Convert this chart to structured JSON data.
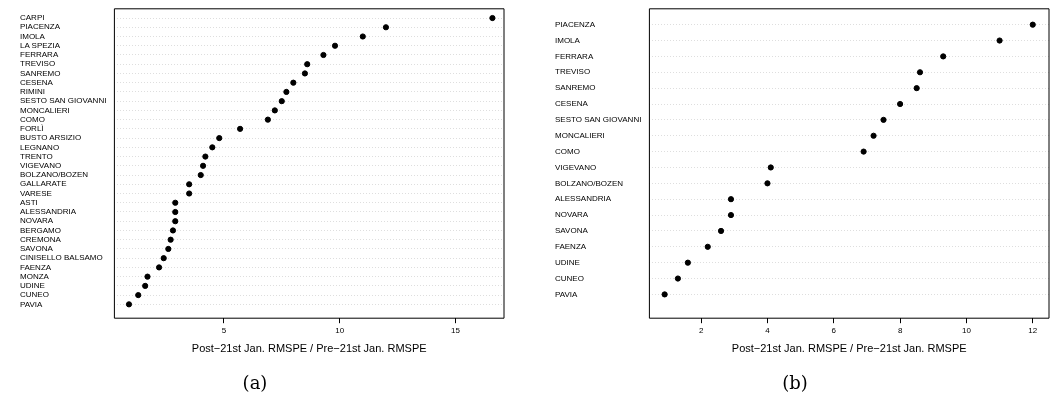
{
  "chart_data": [
    {
      "type": "scatter",
      "orientation": "horizontal",
      "color": "#000000",
      "marker": "circle",
      "grid": "y",
      "xlabel": "Post−21st Jan. RMSPE / Pre−21st Jan. RMSPE",
      "xlim": [
        0.27,
        17.1
      ],
      "xticks": [
        5,
        10,
        15
      ],
      "annotations": [
        "(a)"
      ],
      "categories": [
        "CARPI",
        "PIACENZA",
        "IMOLA",
        "LA SPEZIA",
        "FERRARA",
        "TREVISO",
        "SANREMO",
        "CESENA",
        "RIMINI",
        "SESTO SAN GIOVANNI",
        "MONCALIERI",
        "COMO",
        "FORLÌ",
        "BUSTO ARSIZIO",
        "LEGNANO",
        "TRENTO",
        "VIGEVANO",
        "BOLZANO/BOZEN",
        "GALLARATE",
        "VARESE",
        "ASTI",
        "ALESSANDRIA",
        "NOVARA",
        "BERGAMO",
        "CREMONA",
        "SAVONA",
        "CINISELLO BALSAMO",
        "FAENZA",
        "MONZA",
        "UDINE",
        "CUNEO",
        "PAVIA"
      ],
      "values": [
        16.6,
        12.0,
        11.0,
        9.8,
        9.3,
        8.6,
        8.5,
        8.0,
        7.7,
        7.5,
        7.2,
        6.9,
        5.7,
        4.8,
        4.5,
        4.2,
        4.1,
        4.0,
        3.5,
        3.5,
        2.9,
        2.9,
        2.9,
        2.8,
        2.7,
        2.6,
        2.4,
        2.2,
        1.7,
        1.6,
        1.3,
        0.9
      ]
    },
    {
      "type": "scatter",
      "orientation": "horizontal",
      "color": "#000000",
      "marker": "circle",
      "grid": "y",
      "xlabel": "Post−21st Jan. RMSPE / Pre−21st Jan. RMSPE",
      "xlim": [
        0.44,
        12.49
      ],
      "xticks": [
        2,
        4,
        6,
        8,
        10,
        12
      ],
      "annotations": [
        "(b)"
      ],
      "categories": [
        "PIACENZA",
        "IMOLA",
        "FERRARA",
        "TREVISO",
        "SANREMO",
        "CESENA",
        "SESTO SAN GIOVANNI",
        "MONCALIERI",
        "COMO",
        "VIGEVANO",
        "BOLZANO/BOZEN",
        "ALESSANDRIA",
        "NOVARA",
        "SAVONA",
        "FAENZA",
        "UDINE",
        "CUNEO",
        "PAVIA"
      ],
      "values": [
        12.0,
        11.0,
        9.3,
        8.6,
        8.5,
        8.0,
        7.5,
        7.2,
        6.9,
        4.1,
        4.0,
        2.9,
        2.9,
        2.6,
        2.2,
        1.6,
        1.3,
        0.9
      ]
    }
  ]
}
